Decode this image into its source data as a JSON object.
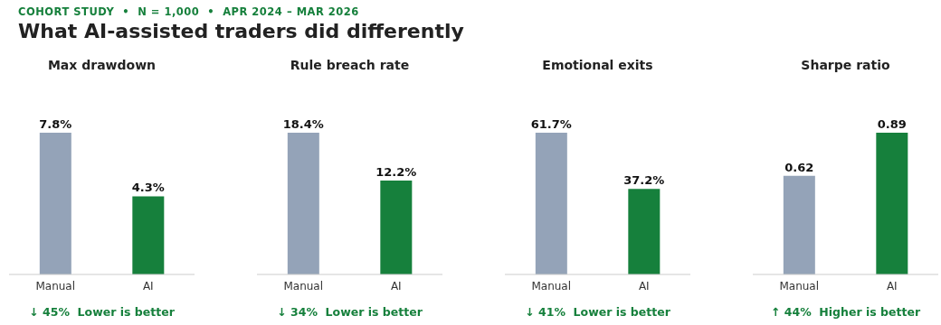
{
  "chart_data": [
    {
      "type": "bar",
      "title": "Max drawdown",
      "categories": [
        "Manual",
        "AI"
      ],
      "values": [
        7.8,
        4.3
      ],
      "value_labels": [
        "7.8%",
        "4.3%"
      ],
      "colors": [
        "#94a3b8",
        "#16803c"
      ],
      "annotations": [
        "COHORT STUDY  •  N = 1,000  •  APR 2024 – MAR 2026",
        "What AI-assisted traders did differently",
        "↓ 45%  Lower is better"
      ]
    },
    {
      "type": "bar",
      "title": "Rule breach rate",
      "categories": [
        "Manual",
        "AI"
      ],
      "values": [
        18.4,
        12.2
      ],
      "value_labels": [
        "18.4%",
        "12.2%"
      ],
      "colors": [
        "#94a3b8",
        "#16803c"
      ],
      "annotations": [
        "↓ 34%  Lower is better"
      ]
    },
    {
      "type": "bar",
      "title": "Emotional exits",
      "categories": [
        "Manual",
        "AI"
      ],
      "values": [
        61.7,
        37.2
      ],
      "value_labels": [
        "61.7%",
        "37.2%"
      ],
      "colors": [
        "#94a3b8",
        "#16803c"
      ],
      "annotations": [
        "↓ 41%  Lower is better"
      ]
    },
    {
      "type": "bar",
      "title": "Sharpe ratio",
      "categories": [
        "Manual",
        "AI"
      ],
      "values": [
        0.62,
        0.89
      ],
      "data_labels": true,
      "colors": [
        "#94a3b8",
        "#16803c"
      ],
      "annotations": [
        "↑ 44%  Higher is better"
      ]
    }
  ]
}
